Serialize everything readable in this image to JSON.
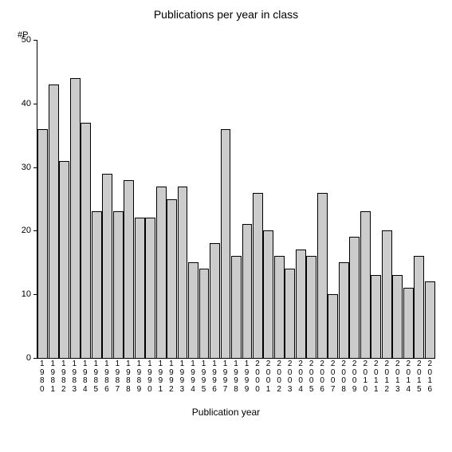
{
  "chart": {
    "type": "bar",
    "title": "Publications per year in class",
    "title_fontsize": 14,
    "y_axis_label": "#P",
    "x_axis_title": "Publication year",
    "x_axis_title_fontsize": 12,
    "label_fontsize": 11,
    "x_tick_fontsize": 10,
    "background_color": "#ffffff",
    "bar_fill": "#cccccc",
    "bar_border": "#000000",
    "axis_color": "#000000",
    "ylim": [
      0,
      50
    ],
    "ytick_step": 10,
    "y_ticks": [
      0,
      10,
      20,
      30,
      40,
      50
    ],
    "categories": [
      "1980",
      "1981",
      "1982",
      "1983",
      "1984",
      "1985",
      "1986",
      "1987",
      "1988",
      "1989",
      "1990",
      "1991",
      "1992",
      "1993",
      "1994",
      "1995",
      "1996",
      "1997",
      "1998",
      "1999",
      "2000",
      "2001",
      "2002",
      "2003",
      "2004",
      "2005",
      "2006",
      "2007",
      "2008",
      "2009",
      "2010",
      "2011",
      "2012",
      "2013",
      "2014",
      "2015",
      "2016"
    ],
    "values": [
      36,
      43,
      31,
      44,
      37,
      23,
      29,
      23,
      28,
      22,
      22,
      27,
      25,
      27,
      15,
      14,
      18,
      36,
      16,
      21,
      26,
      20,
      16,
      14,
      17,
      16,
      26,
      10,
      15,
      19,
      23,
      13,
      20,
      13,
      11,
      16,
      12
    ],
    "bar_width": 1.0
  }
}
